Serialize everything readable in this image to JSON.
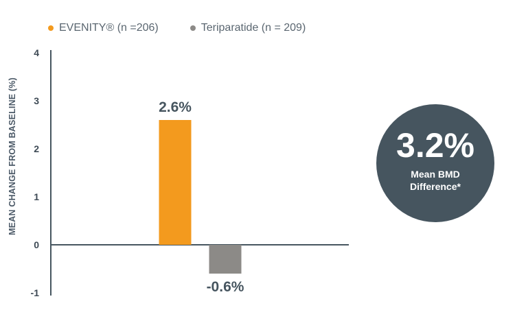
{
  "legend": {
    "items": [
      {
        "label": "EVENITY® (n =206)",
        "color": "#f39a1e"
      },
      {
        "label": "Teriparatide (n = 209)",
        "color": "#8c8a87"
      }
    ]
  },
  "callout": {
    "value": "3.2%",
    "label_line1": "Mean BMD",
    "label_line2": "Difference*"
  },
  "chart_data": {
    "type": "bar",
    "ylabel": "MEAN CHANGE FROM BASELINE (%)",
    "ylim": [
      -1,
      4
    ],
    "yticks": [
      4,
      3,
      2,
      1,
      0,
      -1
    ],
    "series": [
      {
        "name": "EVENITY® (n =206)",
        "value": 2.6,
        "label": "2.6%",
        "color": "#f39a1e"
      },
      {
        "name": "Teriparatide (n = 209)",
        "value": -0.6,
        "label": "-0.6%",
        "color": "#8c8a87"
      }
    ],
    "grid": false,
    "legend_position": "top-left"
  }
}
